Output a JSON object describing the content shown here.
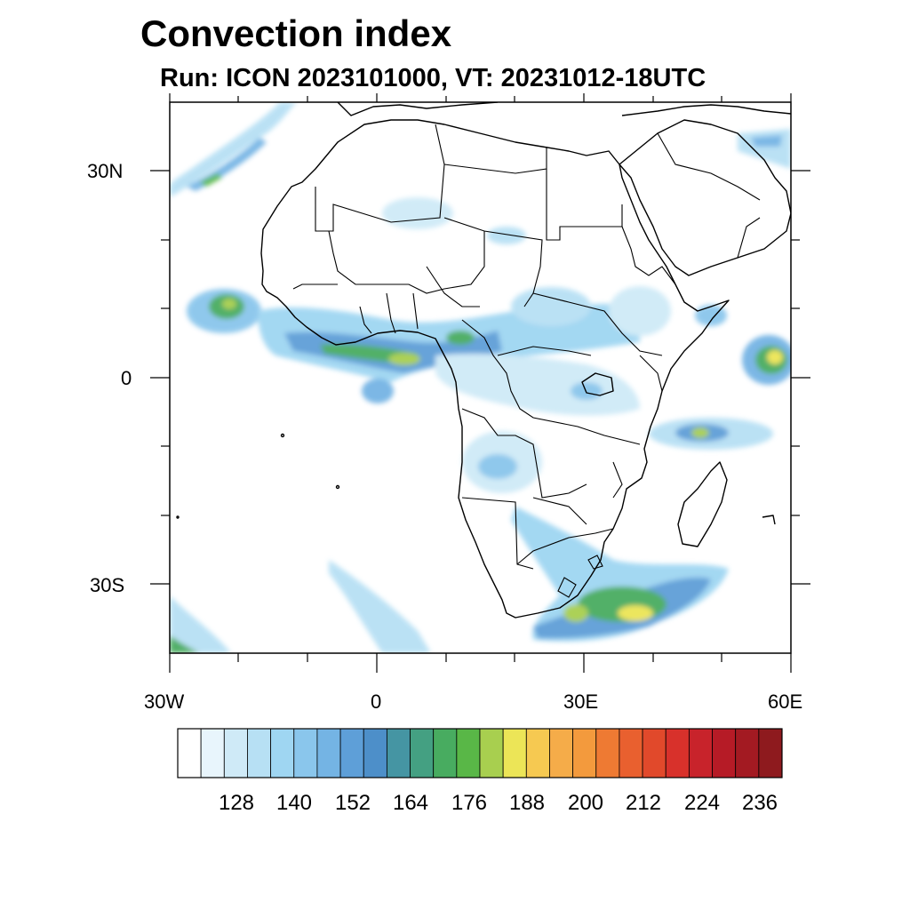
{
  "title": "Convection index",
  "subtitle": "Run: ICON 2023101000,  VT: 20231012-18UTC",
  "map": {
    "lon_range": [
      -30,
      60
    ],
    "lat_range": [
      -40,
      40
    ],
    "lon_labels": [
      "30W",
      "0",
      "30E",
      "60E"
    ],
    "lat_labels": [
      "30N",
      "0",
      "30S"
    ]
  },
  "colorbar": {
    "colors": [
      "#ffffff",
      "#e8f5fc",
      "#cfeaf7",
      "#b7e0f4",
      "#9fd6f2",
      "#8ac6ec",
      "#74b4e4",
      "#5e9fd8",
      "#4d8fc9",
      "#4595a3",
      "#44a082",
      "#48ac60",
      "#59b747",
      "#a8cf4f",
      "#ece557",
      "#f6c951",
      "#f5ac49",
      "#f39a3d",
      "#ee7a33",
      "#e9602f",
      "#e1492b",
      "#d8312b",
      "#c8232b",
      "#b61b26",
      "#a31a22",
      "#8e1a1e"
    ],
    "tick_labels": [
      "128",
      "140",
      "152",
      "164",
      "176",
      "188",
      "200",
      "212",
      "224",
      "236"
    ]
  }
}
